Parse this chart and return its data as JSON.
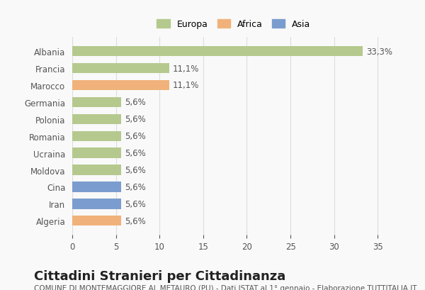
{
  "categories": [
    "Albania",
    "Francia",
    "Marocco",
    "Germania",
    "Polonia",
    "Romania",
    "Ucraina",
    "Moldova",
    "Cina",
    "Iran",
    "Algeria"
  ],
  "values": [
    33.3,
    11.1,
    11.1,
    5.6,
    5.6,
    5.6,
    5.6,
    5.6,
    5.6,
    5.6,
    5.6
  ],
  "labels": [
    "33,3%",
    "11,1%",
    "11,1%",
    "5,6%",
    "5,6%",
    "5,6%",
    "5,6%",
    "5,6%",
    "5,6%",
    "5,6%",
    "5,6%"
  ],
  "continents": [
    "Europa",
    "Europa",
    "Africa",
    "Europa",
    "Europa",
    "Europa",
    "Europa",
    "Europa",
    "Asia",
    "Asia",
    "Africa"
  ],
  "colors": {
    "Europa": "#b5c98e",
    "Africa": "#f0b27a",
    "Asia": "#7b9cce"
  },
  "xlim": [
    0,
    37
  ],
  "xticks": [
    0,
    5,
    10,
    15,
    20,
    25,
    30,
    35
  ],
  "title": "Cittadini Stranieri per Cittadinanza",
  "subtitle": "COMUNE DI MONTEMAGGIORE AL METAURO (PU) - Dati ISTAT al 1° gennaio - Elaborazione TUTTITALIA.IT",
  "background_color": "#f9f9f9",
  "grid_color": "#dddddd",
  "bar_height": 0.6,
  "label_fontsize": 8.5,
  "tick_fontsize": 8.5,
  "title_fontsize": 13,
  "subtitle_fontsize": 7.5,
  "legend_order": [
    "Europa",
    "Africa",
    "Asia"
  ]
}
